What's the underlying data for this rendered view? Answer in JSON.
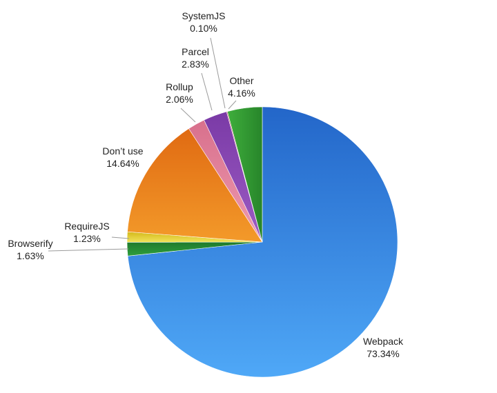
{
  "chart_data": {
    "type": "pie",
    "title": "",
    "start_angle_deg": 0,
    "direction": "clockwise",
    "legend": "none",
    "slices": [
      {
        "label": "Webpack",
        "value": 73.34,
        "value_label": "73.34%",
        "color_light": "#4fa8f7",
        "color_dark": "#2366c9",
        "gradient_dir": "vertical"
      },
      {
        "label": "Browserify",
        "value": 1.63,
        "value_label": "1.63%",
        "color_light": "#2f9e3e",
        "color_dark": "#1f7a2c",
        "gradient_dir": "vertical"
      },
      {
        "label": "RequireJS",
        "value": 1.23,
        "value_label": "1.23%",
        "color_light": "#f0e35a",
        "color_dark": "#d4b81a",
        "gradient_dir": "vertical"
      },
      {
        "label": "Don’t use",
        "value": 14.64,
        "value_label": "14.64%",
        "color_light": "#f39a2a",
        "color_dark": "#e06a12",
        "gradient_dir": "vertical"
      },
      {
        "label": "Rollup",
        "value": 2.06,
        "value_label": "2.06%",
        "color_light": "#ee9ab0",
        "color_dark": "#d8708c",
        "gradient_dir": "vertical"
      },
      {
        "label": "Parcel",
        "value": 2.83,
        "value_label": "2.83%",
        "color_light": "#9c5cc4",
        "color_dark": "#7a3aa6",
        "gradient_dir": "vertical"
      },
      {
        "label": "SystemJS",
        "value": 0.1,
        "value_label": "0.10%",
        "color_light": "#e0406c",
        "color_dark": "#c02a52",
        "gradient_dir": "vertical"
      },
      {
        "label": "Other",
        "value": 4.16,
        "value_label": "4.16%",
        "color_light": "#3fae3c",
        "color_dark": "#27852a",
        "gradient_dir": "horizontal"
      }
    ]
  }
}
